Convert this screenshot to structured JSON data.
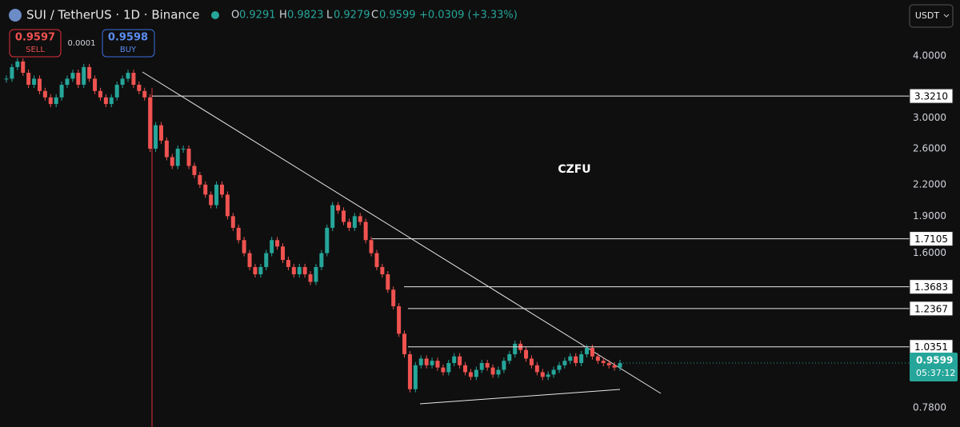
{
  "header": {
    "symbol": "SUI / TetherUS · 1D · Binance",
    "open_label": "O",
    "open": "0.9291",
    "high_label": "H",
    "high": "0.9823",
    "low_label": "L",
    "low": "0.9279",
    "close_label": "C",
    "close": "0.9599",
    "change": "+0.0309 (+3.33%)"
  },
  "order_panel": {
    "sell_price": "0.9597",
    "sell_label": "SELL",
    "spread": "0.0001",
    "buy_price": "0.9598",
    "buy_label": "BUY"
  },
  "currency_button": "USDT",
  "annotation": "CZFU",
  "price_axis": {
    "log_scale": true,
    "ylim": [
      0.713,
      5.19
    ],
    "ticks": [
      {
        "value": 4,
        "label": "4.0000"
      },
      {
        "value": 3,
        "label": "3.0000"
      },
      {
        "value": 2.6,
        "label": "2.6000"
      },
      {
        "value": 2.2,
        "label": "2.2000"
      },
      {
        "value": 1.9,
        "label": "1.9000"
      },
      {
        "value": 1.6,
        "label": "1.6000"
      },
      {
        "value": 0.78,
        "label": "0.7800"
      }
    ]
  },
  "levels": [
    {
      "value": 3.321,
      "label": "3.3210"
    },
    {
      "value": 1.7105,
      "label": "1.7105"
    },
    {
      "value": 1.3683,
      "label": "1.3683"
    },
    {
      "value": 1.2367,
      "label": "1.2367"
    },
    {
      "value": 1.0351,
      "label": "1.0351"
    }
  ],
  "current_price": {
    "value": 0.9599,
    "label": "0.9599",
    "countdown": "05:37:12"
  },
  "candles": {
    "up_color": "#26a69a",
    "down_color": "#ef5350",
    "closes": [
      3.6,
      3.8,
      3.9,
      3.7,
      3.5,
      3.6,
      3.4,
      3.3,
      3.2,
      3.3,
      3.5,
      3.6,
      3.7,
      3.5,
      3.8,
      3.6,
      3.4,
      3.3,
      3.2,
      3.3,
      3.5,
      3.6,
      3.7,
      3.5,
      3.4,
      3.3,
      2.6,
      2.9,
      2.7,
      2.5,
      2.4,
      2.6,
      2.6,
      2.4,
      2.3,
      2.2,
      2.1,
      2.0,
      2.2,
      2.1,
      1.9,
      1.8,
      1.7,
      1.6,
      1.5,
      1.45,
      1.5,
      1.6,
      1.7,
      1.65,
      1.55,
      1.5,
      1.45,
      1.5,
      1.45,
      1.4,
      1.5,
      1.6,
      1.8,
      2.0,
      1.95,
      1.85,
      1.8,
      1.9,
      1.85,
      1.7,
      1.6,
      1.5,
      1.45,
      1.35,
      1.25,
      1.1,
      1.0,
      0.85,
      0.95,
      0.98,
      0.95,
      0.97,
      0.94,
      0.92,
      0.96,
      0.99,
      0.95,
      0.92,
      0.9,
      0.93,
      0.96,
      0.94,
      0.91,
      0.93,
      0.97,
      1.0,
      1.05,
      1.02,
      0.98,
      0.95,
      0.92,
      0.9,
      0.91,
      0.93,
      0.95,
      0.97,
      0.99,
      0.96,
      1.0,
      1.03,
      0.99,
      0.97,
      0.96,
      0.95,
      0.94,
      0.9599
    ]
  }
}
